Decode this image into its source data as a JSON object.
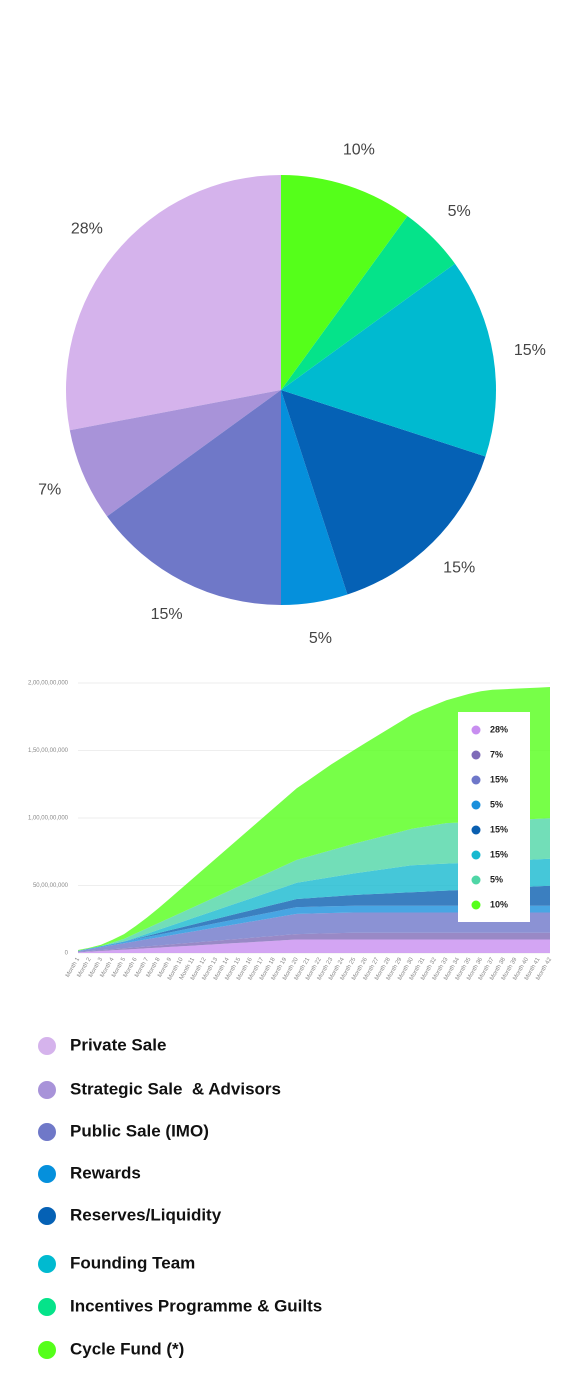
{
  "chart_data": [
    {
      "type": "pie",
      "categories": [
        "Private Sale",
        "Strategic Sale  & Advisors",
        "Public Sale (IMO)",
        "Rewards",
        "Reserves/Liquidity",
        "Founding Team",
        "Incentives Programme & Guilts",
        "Cycle Fund (*)"
      ],
      "values": [
        28,
        7,
        15,
        5,
        15,
        15,
        5,
        10
      ],
      "value_labels": [
        "28%",
        "7%",
        "15%",
        "5%",
        "15%",
        "15%",
        "5%",
        "10%"
      ],
      "colors": [
        "#d5b3ec",
        "#a893d9",
        "#6f78c8",
        "#0590dc",
        "#0561b5",
        "#00bad0",
        "#05e38a",
        "#55ff1a"
      ]
    },
    {
      "type": "stacked_area",
      "x": [
        "Month 1",
        "Month 2",
        "Month 3",
        "Month 4",
        "Month 5",
        "Month 6",
        "Month 7",
        "Month 8",
        "Month 9",
        "Month 10",
        "Month 11",
        "Month 12",
        "Month 13",
        "Month 14",
        "Month 15",
        "Month 16",
        "Month 17",
        "Month 18",
        "Month 19",
        "Month 20",
        "Month 21",
        "Month 22",
        "Month 23",
        "Month 24",
        "Month 25",
        "Month 26",
        "Month 27",
        "Month 28",
        "Month 29",
        "Month 30",
        "Month 31",
        "Month 32",
        "Month 33",
        "Month 34",
        "Month 35",
        "Month 36",
        "Month 37",
        "Month 38",
        "Month 39",
        "Month 40",
        "Month 41",
        "Month 42"
      ],
      "ylim": [
        0,
        2000000000
      ],
      "yticks": [
        0,
        {
          "value": 500000000,
          "label": "50,00,00,000"
        },
        {
          "value": 1000000000,
          "label": "1,00,00,00,000"
        },
        {
          "value": 1500000000,
          "label": "1,50,00,00,000"
        },
        {
          "value": 2000000000,
          "label": "2,00,00,00,000"
        }
      ],
      "grid": true,
      "legend": "upper right",
      "series": [
        {
          "name": "28%",
          "color": "#c88ef0",
          "values": [
            5000000,
            10000000,
            15000000,
            20000000,
            25000000,
            30000000,
            35000000,
            40000000,
            45000000,
            50000000,
            55000000,
            60000000,
            65000000,
            70000000,
            75000000,
            80000000,
            85000000,
            90000000,
            95000000,
            100000000,
            100000000,
            100000000,
            100000000,
            100000000,
            100000000,
            100000000,
            100000000,
            100000000,
            100000000,
            100000000,
            100000000,
            100000000,
            100000000,
            100000000,
            100000000,
            100000000,
            100000000,
            100000000,
            100000000,
            100000000,
            100000000,
            100000000
          ]
        },
        {
          "name": "7%",
          "color": "#7f6bb8",
          "values": [
            2000000,
            4000000,
            6000000,
            8000000,
            10000000,
            12000000,
            14000000,
            16000000,
            18000000,
            20000000,
            22000000,
            24000000,
            26000000,
            28000000,
            30000000,
            32000000,
            34000000,
            36000000,
            38000000,
            40000000,
            42000000,
            44000000,
            46000000,
            48000000,
            50000000,
            50000000,
            50000000,
            50000000,
            50000000,
            50000000,
            50000000,
            50000000,
            50000000,
            50000000,
            50000000,
            50000000,
            50000000,
            50000000,
            50000000,
            50000000,
            50000000,
            50000000
          ]
        },
        {
          "name": "15%",
          "color": "#6e77c9",
          "values": [
            7500000,
            15000000,
            22500000,
            30000000,
            37500000,
            45000000,
            52500000,
            60000000,
            67500000,
            75000000,
            82500000,
            90000000,
            97500000,
            105000000,
            112500000,
            120000000,
            127500000,
            135000000,
            142500000,
            150000000,
            150000000,
            150000000,
            150000000,
            150000000,
            150000000,
            150000000,
            150000000,
            150000000,
            150000000,
            150000000,
            150000000,
            150000000,
            150000000,
            150000000,
            150000000,
            150000000,
            150000000,
            150000000,
            150000000,
            150000000,
            150000000,
            150000000
          ]
        },
        {
          "name": "5%",
          "color": "#1a90dc",
          "values": [
            2500000,
            5000000,
            7500000,
            10000000,
            12500000,
            15000000,
            17500000,
            20000000,
            22500000,
            25000000,
            27500000,
            30000000,
            32500000,
            35000000,
            37500000,
            40000000,
            42500000,
            45000000,
            47500000,
            50000000,
            50000000,
            50000000,
            50000000,
            50000000,
            50000000,
            50000000,
            50000000,
            50000000,
            50000000,
            50000000,
            50000000,
            50000000,
            50000000,
            50000000,
            50000000,
            50000000,
            50000000,
            50000000,
            50000000,
            50000000,
            50000000,
            50000000
          ]
        },
        {
          "name": "15%",
          "color": "#0a5fb0",
          "values": [
            0,
            0,
            0,
            0,
            0,
            4000000,
            8000000,
            12000000,
            16000000,
            20000000,
            24000000,
            28000000,
            32000000,
            36000000,
            40000000,
            44000000,
            48000000,
            52000000,
            56000000,
            60000000,
            64000000,
            68000000,
            72000000,
            76000000,
            80000000,
            84000000,
            88000000,
            92000000,
            96000000,
            100000000,
            104000000,
            108000000,
            112000000,
            116000000,
            120000000,
            124000000,
            128000000,
            132000000,
            136000000,
            140000000,
            144000000,
            148000000
          ]
        },
        {
          "name": "15%",
          "color": "#17b9d0",
          "values": [
            0,
            0,
            0,
            0,
            0,
            8000000,
            16000000,
            24000000,
            32000000,
            40000000,
            48000000,
            56000000,
            64000000,
            72000000,
            80000000,
            88000000,
            96000000,
            104000000,
            112000000,
            120000000,
            128000000,
            136000000,
            144000000,
            152000000,
            160000000,
            168000000,
            176000000,
            184000000,
            192000000,
            200000000,
            200000000,
            200000000,
            200000000,
            200000000,
            200000000,
            200000000,
            200000000,
            200000000,
            200000000,
            200000000,
            200000000,
            200000000
          ]
        },
        {
          "name": "5%",
          "color": "#4fd6a6",
          "values": [
            0,
            0,
            0,
            10000000,
            20000000,
            30000000,
            40000000,
            50000000,
            60000000,
            70000000,
            80000000,
            90000000,
            100000000,
            110000000,
            120000000,
            130000000,
            140000000,
            150000000,
            160000000,
            170000000,
            180000000,
            190000000,
            200000000,
            210000000,
            220000000,
            230000000,
            240000000,
            250000000,
            260000000,
            270000000,
            280000000,
            290000000,
            300000000,
            300000000,
            300000000,
            300000000,
            300000000,
            300000000,
            300000000,
            300000000,
            300000000,
            300000000
          ]
        },
        {
          "name": "10%",
          "color": "#55ff1a",
          "values": [
            5000000,
            5000000,
            10000000,
            20000000,
            35000000,
            55000000,
            80000000,
            110000000,
            145000000,
            180000000,
            215000000,
            250000000,
            285000000,
            320000000,
            355000000,
            390000000,
            425000000,
            460000000,
            495000000,
            530000000,
            565000000,
            600000000,
            635000000,
            665000000,
            695000000,
            725000000,
            755000000,
            785000000,
            815000000,
            845000000,
            870000000,
            890000000,
            910000000,
            930000000,
            950000000,
            965000000,
            972000000,
            972000000,
            972000000,
            972000000,
            972000000,
            972000000
          ]
        }
      ]
    }
  ]
}
